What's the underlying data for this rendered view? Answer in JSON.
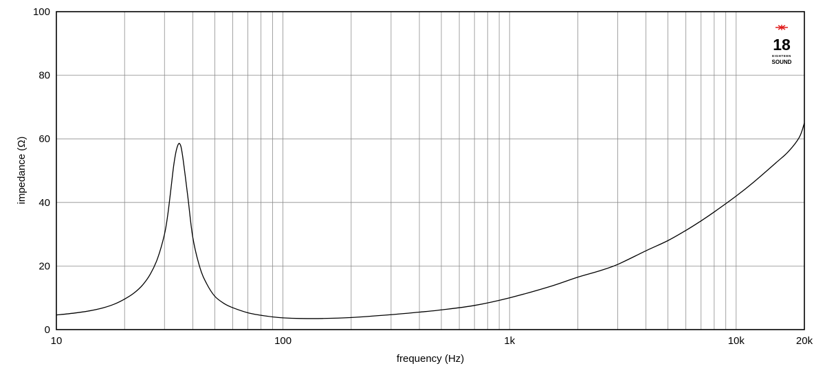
{
  "chart_data": {
    "type": "line",
    "xlabel": "frequency (Hz)",
    "ylabel": "impedance (Ω)",
    "x_scale": "log",
    "xlim": [
      10,
      20000
    ],
    "ylim": [
      0,
      100
    ],
    "grid": true,
    "x_ticks": [
      {
        "value": 10,
        "label": "10"
      },
      {
        "value": 100,
        "label": "100"
      },
      {
        "value": 1000,
        "label": "1k"
      },
      {
        "value": 10000,
        "label": "10k"
      },
      {
        "value": 20000,
        "label": "20k"
      }
    ],
    "y_ticks": [
      {
        "value": 0,
        "label": "0"
      },
      {
        "value": 20,
        "label": "20"
      },
      {
        "value": 40,
        "label": "40"
      },
      {
        "value": 60,
        "label": "60"
      },
      {
        "value": 80,
        "label": "80"
      },
      {
        "value": 100,
        "label": "100"
      }
    ],
    "x_grid": [
      10,
      20,
      30,
      40,
      50,
      60,
      70,
      80,
      90,
      100,
      200,
      300,
      400,
      500,
      600,
      700,
      800,
      900,
      1000,
      2000,
      3000,
      4000,
      5000,
      6000,
      7000,
      8000,
      9000,
      10000,
      20000
    ],
    "series": [
      {
        "color": "#000000",
        "x": [
          10,
          12,
          14,
          16,
          18,
          20,
          22,
          24,
          26,
          28,
          30,
          31,
          32,
          33,
          34,
          35,
          36,
          38,
          40,
          43,
          46,
          50,
          55,
          60,
          70,
          80,
          90,
          100,
          120,
          150,
          200,
          300,
          400,
          500,
          700,
          1000,
          1500,
          2000,
          2500,
          3000,
          4000,
          5000,
          6000,
          7000,
          8000,
          10000,
          12000,
          15000,
          17000,
          19000,
          20000
        ],
        "y": [
          4.6,
          5.2,
          5.9,
          6.8,
          8.0,
          9.6,
          11.5,
          14.0,
          17.5,
          22.5,
          30.0,
          36.0,
          44.0,
          52.0,
          57.0,
          58.5,
          55.0,
          42.0,
          29.0,
          19.5,
          14.5,
          10.5,
          8.2,
          6.9,
          5.3,
          4.5,
          4.0,
          3.7,
          3.5,
          3.5,
          3.8,
          4.7,
          5.5,
          6.2,
          7.6,
          10.0,
          13.5,
          16.5,
          18.5,
          20.5,
          24.8,
          28.0,
          31.2,
          34.2,
          37.0,
          42.0,
          46.5,
          52.5,
          56.0,
          60.5,
          65.0
        ]
      }
    ]
  },
  "logo": {
    "number": "18",
    "line1": "EIGHTEEN",
    "line2": "SOUND",
    "star_color": "#e01b1b"
  }
}
